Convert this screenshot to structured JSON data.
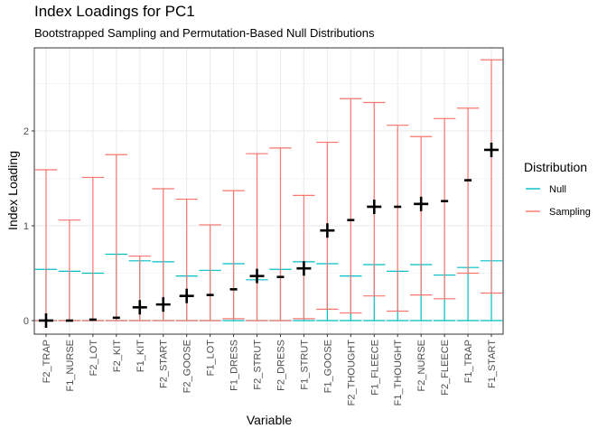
{
  "chart_data": {
    "type": "errorbar",
    "title": "Index Loadings for PC1",
    "subtitle": "Bootstrapped Sampling and Permutation-Based Null Distributions",
    "x_label": "Variable",
    "y_label": "Index Loading",
    "legend_title": "Distribution",
    "legend_position": "right",
    "grid": true,
    "categories": [
      "F2_TRAP",
      "F1_NURSE",
      "F2_LOT",
      "F2_KIT",
      "F1_KIT",
      "F2_START",
      "F2_GOOSE",
      "F1_LOT",
      "F1_DRESS",
      "F2_STRUT",
      "F2_DRESS",
      "F1_STRUT",
      "F1_GOOSE",
      "F2_THOUGHT",
      "F1_FLEECE",
      "F1_THOUGHT",
      "F2_NURSE",
      "F2_FLEECE",
      "F1_TRAP",
      "F1_START"
    ],
    "ylim": [
      -0.143,
      2.876
    ],
    "yticks": [
      0,
      1,
      2
    ],
    "yminor": [
      0.5,
      1.5,
      2.5
    ],
    "series": [
      {
        "name": "Null",
        "color": "#00BFC4",
        "lower": [
          0,
          0,
          0,
          0,
          0,
          0,
          0,
          0,
          0,
          0,
          0,
          0,
          0,
          0,
          0,
          0,
          0,
          0,
          0,
          0
        ],
        "upper": [
          0.54,
          0.52,
          0.5,
          0.7,
          0.63,
          0.62,
          0.47,
          0.53,
          0.6,
          0.43,
          0.54,
          0.62,
          0.6,
          0.47,
          0.59,
          0.52,
          0.59,
          0.48,
          0.56,
          0.63
        ]
      },
      {
        "name": "Sampling",
        "color": "#F8766D",
        "lower": [
          0,
          0,
          0,
          0,
          0,
          0,
          0,
          0,
          0.02,
          0,
          0,
          0.02,
          0.12,
          0.08,
          0.26,
          0.1,
          0.27,
          0.23,
          0.5,
          0.29
        ],
        "upper": [
          1.59,
          1.06,
          1.51,
          1.75,
          0.68,
          1.39,
          1.28,
          1.01,
          1.37,
          1.76,
          1.82,
          1.32,
          1.88,
          2.34,
          2.3,
          2.06,
          1.94,
          2.13,
          2.24,
          2.75
        ]
      }
    ],
    "points": {
      "color": "#000000",
      "values": [
        0.0,
        0.0,
        0.01,
        0.03,
        0.14,
        0.17,
        0.26,
        0.27,
        0.33,
        0.47,
        0.46,
        0.55,
        0.95,
        1.06,
        1.2,
        1.2,
        1.23,
        1.26,
        1.48,
        1.8
      ],
      "shapes": [
        "plus",
        "dash",
        "dash",
        "dash",
        "plus",
        "plus",
        "plus",
        "dash",
        "dash",
        "plus",
        "dash",
        "plus",
        "plus",
        "dash",
        "plus",
        "dash",
        "plus",
        "dash",
        "dash",
        "plus"
      ]
    }
  }
}
